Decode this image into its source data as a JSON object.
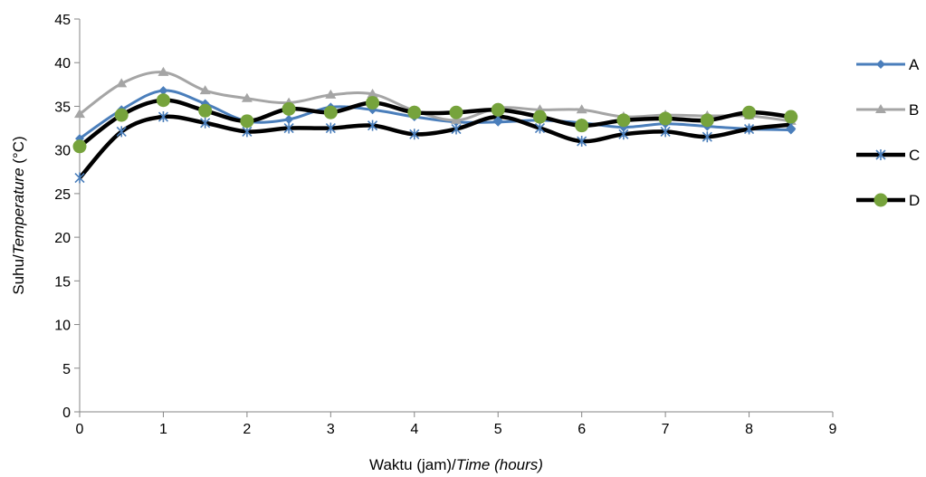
{
  "chart_data": {
    "type": "line",
    "smooth": true,
    "xlabel": {
      "plain": "Waktu (jam)/",
      "italic": "Time (hours)"
    },
    "ylabel": {
      "plain": "Suhu/",
      "italic": "Temperature",
      "suffix": " (°C)"
    },
    "xlim": [
      0,
      9
    ],
    "ylim": [
      0,
      45
    ],
    "xticks": [
      "0",
      "1",
      "2",
      "3",
      "4",
      "5",
      "6",
      "7",
      "8",
      "9"
    ],
    "yticks": [
      "0",
      "5",
      "10",
      "15",
      "20",
      "25",
      "30",
      "35",
      "40",
      "45"
    ],
    "grid": false,
    "legend_position": "right",
    "x": [
      0,
      0.5,
      1,
      1.5,
      2,
      2.5,
      3,
      3.5,
      4,
      4.5,
      5,
      5.5,
      6,
      6.5,
      7,
      7.5,
      8,
      8.5
    ],
    "series": [
      {
        "name": "A",
        "color": "#4a7ebb",
        "marker": "diamond",
        "values": [
          31.3,
          34.6,
          36.8,
          35.3,
          33.3,
          33.5,
          34.9,
          34.6,
          33.8,
          33.2,
          33.2,
          33.4,
          33.1,
          32.6,
          33.0,
          32.7,
          32.4,
          32.3
        ]
      },
      {
        "name": "B",
        "color": "#a5a5a5",
        "marker": "triangle",
        "values": [
          34.1,
          37.6,
          38.9,
          36.8,
          35.9,
          35.4,
          36.3,
          36.4,
          34.5,
          33.4,
          34.8,
          34.6,
          34.6,
          33.8,
          34.0,
          33.9,
          33.9,
          33.3
        ]
      },
      {
        "name": "C",
        "color": "#000000",
        "marker": "star",
        "values": [
          26.8,
          32.1,
          33.8,
          33.1,
          32.1,
          32.5,
          32.5,
          32.8,
          31.8,
          32.4,
          33.8,
          32.5,
          31.0,
          31.8,
          32.1,
          31.5,
          32.4,
          32.9
        ]
      },
      {
        "name": "D",
        "color": "#000000",
        "marker": "circle",
        "marker_color": "#76a33c",
        "values": [
          30.4,
          34.0,
          35.7,
          34.5,
          33.3,
          34.7,
          34.3,
          35.4,
          34.3,
          34.3,
          34.6,
          33.8,
          32.8,
          33.4,
          33.6,
          33.4,
          34.3,
          33.8
        ]
      }
    ]
  }
}
